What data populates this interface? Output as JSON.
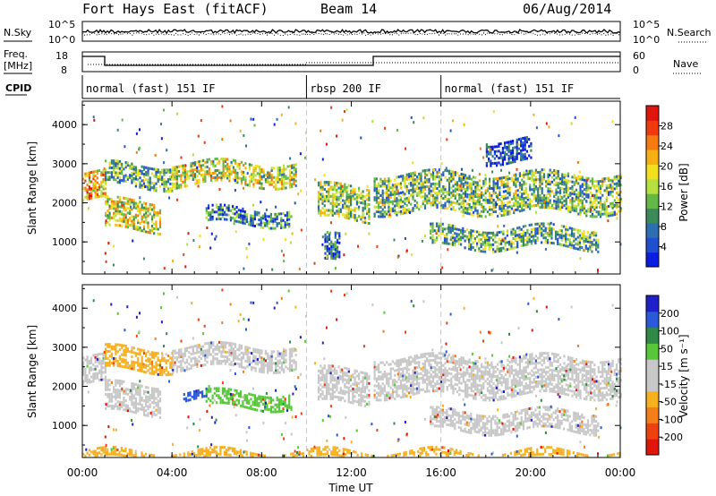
{
  "header": {
    "station": "Fort Hays East (fitACF)",
    "beam": "Beam 14",
    "date": "06/Aug/2014"
  },
  "strips": {
    "nsky_label": "N.Sky",
    "nsearch_label": "N.Search",
    "noise_ticks_left": [
      "10^5",
      "10^0"
    ],
    "noise_ticks_right": [
      "10^5",
      "10^0"
    ],
    "freq_label_1": "Freq.",
    "freq_label_2": "[MHz]",
    "freq_ticks": [
      "18",
      "8"
    ],
    "nave_label": "Nave",
    "nave_ticks": [
      "60",
      "0"
    ],
    "cpid_label": "CPID",
    "cpid_segments": [
      {
        "label": "normal (fast) 151 IF",
        "start_hour": 0.0,
        "end_hour": 10.0
      },
      {
        "label": "rbsp 200 IF",
        "start_hour": 10.0,
        "end_hour": 16.0
      },
      {
        "label": "normal (fast) 151 IF",
        "start_hour": 16.0,
        "end_hour": 24.0
      }
    ]
  },
  "chart_data": [
    {
      "type": "heatmap",
      "name": "power",
      "ylabel": "Slant Range [km]",
      "colorbar_label": "Power [dB]",
      "xlim_hours": [
        0,
        24
      ],
      "ylim_km": [
        180,
        4600
      ],
      "yticks": [
        1000,
        2000,
        3000,
        4000
      ],
      "cbar_ticks": [
        "4",
        "8",
        "12",
        "16",
        "20",
        "24",
        "28"
      ],
      "cbar_colors": [
        "#0b1ee0",
        "#2050d0",
        "#2d6fb0",
        "#3c8a5a",
        "#63b848",
        "#b5e040",
        "#f2e020",
        "#f6b014",
        "#f57a10",
        "#ee3a0c",
        "#e0160c"
      ],
      "bands": [
        {
          "start": 0.0,
          "end": 1.0,
          "lo": 2100,
          "hi": 2800,
          "level": 0.75
        },
        {
          "start": 1.0,
          "end": 3.5,
          "lo": 1350,
          "hi": 2100,
          "level": 0.6
        },
        {
          "start": 1.0,
          "end": 4.0,
          "lo": 2450,
          "hi": 3000,
          "level": 0.4
        },
        {
          "start": 4.0,
          "end": 9.5,
          "lo": 2500,
          "hi": 3100,
          "level": 0.55
        },
        {
          "start": 5.5,
          "end": 9.3,
          "lo": 1500,
          "hi": 1900,
          "level": 0.3
        },
        {
          "start": 10.5,
          "end": 12.8,
          "lo": 1600,
          "hi": 2500,
          "level": 0.5
        },
        {
          "start": 10.8,
          "end": 11.5,
          "lo": 500,
          "hi": 1200,
          "level": 0.2
        },
        {
          "start": 13.0,
          "end": 24.0,
          "lo": 1800,
          "hi": 2800,
          "level": 0.45
        },
        {
          "start": 15.5,
          "end": 23.0,
          "lo": 900,
          "hi": 1400,
          "level": 0.4
        },
        {
          "start": 18.0,
          "end": 20.0,
          "lo": 3100,
          "hi": 3700,
          "level": 0.1
        }
      ]
    },
    {
      "type": "heatmap",
      "name": "velocity",
      "ylabel": "Slant Range [km]",
      "colorbar_label": "Velocity [m s⁻¹]",
      "xlabel": "Time UT",
      "xticks": [
        "00:00",
        "04:00",
        "08:00",
        "12:00",
        "16:00",
        "20:00",
        "00:00"
      ],
      "xlim_hours": [
        0,
        24
      ],
      "ylim_km": [
        180,
        4600
      ],
      "yticks": [
        1000,
        2000,
        3000,
        4000
      ],
      "cbar_ticks": [
        "200",
        "100",
        "50",
        "15",
        "-15",
        "-50",
        "-100",
        "-200"
      ],
      "cbar_colors": [
        "#2020c8",
        "#2a5ad8",
        "#2e8a46",
        "#58c83a",
        "#c8c8c8",
        "#c8c8c8",
        "#f6b020",
        "#f57e18",
        "#ee4010",
        "#e0160c"
      ],
      "bands": [
        {
          "start": 0.0,
          "end": 1.0,
          "lo": 2100,
          "hi": 2800,
          "color": "gray"
        },
        {
          "start": 1.0,
          "end": 3.5,
          "lo": 1350,
          "hi": 2100,
          "color": "gray"
        },
        {
          "start": 1.0,
          "end": 4.0,
          "lo": 2450,
          "hi": 3000,
          "color": "orange"
        },
        {
          "start": 4.0,
          "end": 9.5,
          "lo": 2500,
          "hi": 3100,
          "color": "gray"
        },
        {
          "start": 5.5,
          "end": 9.3,
          "lo": 1500,
          "hi": 1900,
          "color": "green"
        },
        {
          "start": 4.5,
          "end": 5.5,
          "lo": 1700,
          "hi": 1900,
          "color": "blue"
        },
        {
          "start": 10.5,
          "end": 12.8,
          "lo": 1600,
          "hi": 2500,
          "color": "gray"
        },
        {
          "start": 13.0,
          "end": 24.0,
          "lo": 1800,
          "hi": 2800,
          "color": "gray"
        },
        {
          "start": 15.5,
          "end": 23.0,
          "lo": 900,
          "hi": 1400,
          "color": "gray"
        },
        {
          "start": 0.0,
          "end": 24.0,
          "lo": 180,
          "hi": 420,
          "color": "orange"
        }
      ]
    }
  ]
}
